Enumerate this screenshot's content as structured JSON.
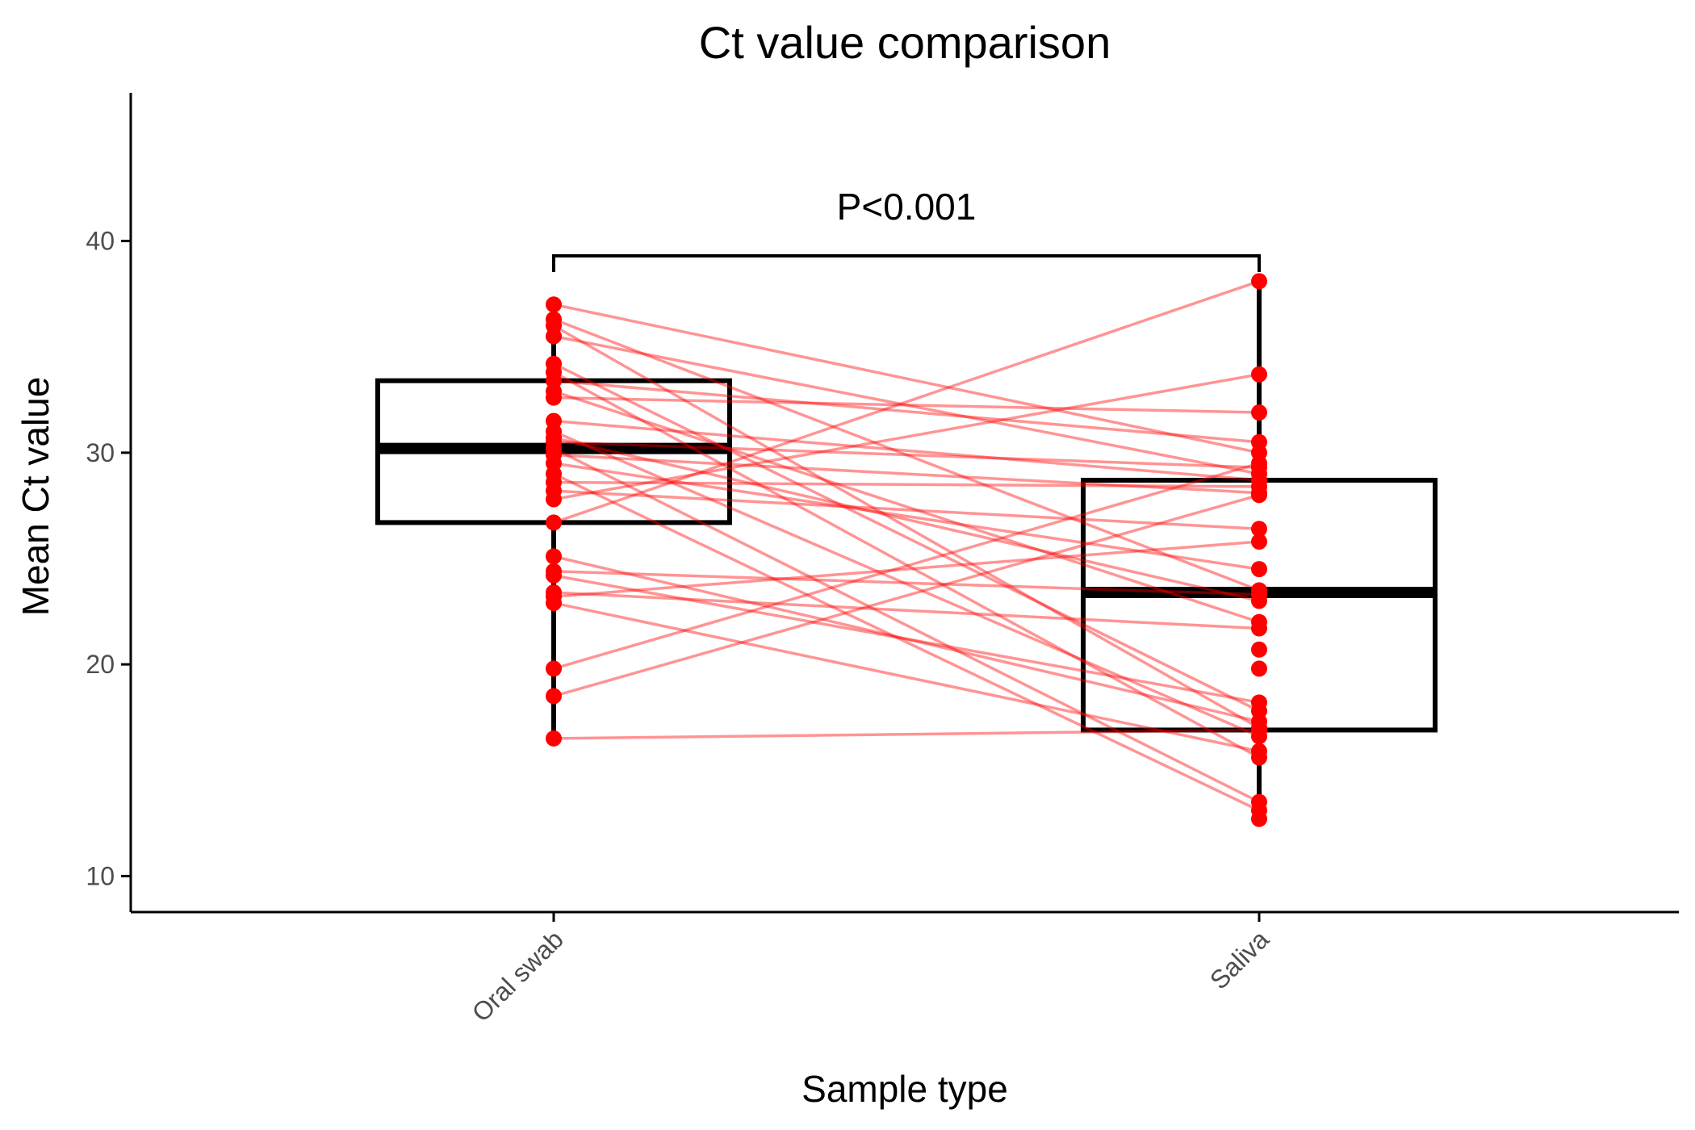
{
  "chart_data": {
    "type": "box",
    "title": "Ct value comparison",
    "xlabel": "Sample type",
    "ylabel": "Mean Ct value",
    "categories": [
      "Oral swab",
      "Saliva"
    ],
    "ylim": [
      8.3,
      47
    ],
    "yticks": [
      10,
      20,
      30,
      40
    ],
    "grid": false,
    "legend": "none",
    "colors": {
      "points": "#ff0000",
      "lines": "#ff0000",
      "box": "#000000"
    },
    "annotation": {
      "text": "P<0.001",
      "from": "Oral swab",
      "to": "Saliva",
      "y": 39.3
    },
    "boxes": [
      {
        "category": "Oral swab",
        "q1": 26.7,
        "median": 30.2,
        "q3": 33.4,
        "whisker_low": 16.5,
        "whisker_high": 37.0
      },
      {
        "category": "Saliva",
        "q1": 16.9,
        "median": 23.4,
        "q3": 28.7,
        "whisker_low": 12.7,
        "whisker_high": 38.1
      }
    ],
    "pairs": [
      {
        "oral": 37.0,
        "saliva": 30.0
      },
      {
        "oral": 36.3,
        "saliva": 23.5
      },
      {
        "oral": 36.0,
        "saliva": 17.0
      },
      {
        "oral": 35.5,
        "saliva": 29.0
      },
      {
        "oral": 34.2,
        "saliva": 17.8
      },
      {
        "oral": 33.8,
        "saliva": 15.6
      },
      {
        "oral": 33.4,
        "saliva": 30.5
      },
      {
        "oral": 32.9,
        "saliva": 22.0
      },
      {
        "oral": 32.6,
        "saliva": 31.9
      },
      {
        "oral": 31.5,
        "saliva": 28.7
      },
      {
        "oral": 31.0,
        "saliva": 16.6
      },
      {
        "oral": 30.7,
        "saliva": 23.0
      },
      {
        "oral": 30.5,
        "saliva": 29.3
      },
      {
        "oral": 30.2,
        "saliva": 13.5
      },
      {
        "oral": 29.9,
        "saliva": 28.1
      },
      {
        "oral": 29.5,
        "saliva": 24.5
      },
      {
        "oral": 29.0,
        "saliva": 13.1
      },
      {
        "oral": 28.6,
        "saliva": 28.4
      },
      {
        "oral": 28.2,
        "saliva": 26.4
      },
      {
        "oral": 27.8,
        "saliva": 33.7
      },
      {
        "oral": 26.7,
        "saliva": 38.1
      },
      {
        "oral": 25.1,
        "saliva": 17.3
      },
      {
        "oral": 24.4,
        "saliva": 23.3
      },
      {
        "oral": 24.2,
        "saliva": 18.2
      },
      {
        "oral": 23.4,
        "saliva": 21.7
      },
      {
        "oral": 23.2,
        "saliva": 25.8
      },
      {
        "oral": 22.9,
        "saliva": 15.9
      },
      {
        "oral": 19.8,
        "saliva": 29.5
      },
      {
        "oral": 18.5,
        "saliva": 28.0
      },
      {
        "oral": 16.5,
        "saliva": 16.9
      }
    ],
    "saliva_extra": [
      19.8,
      20.7,
      12.7
    ]
  }
}
